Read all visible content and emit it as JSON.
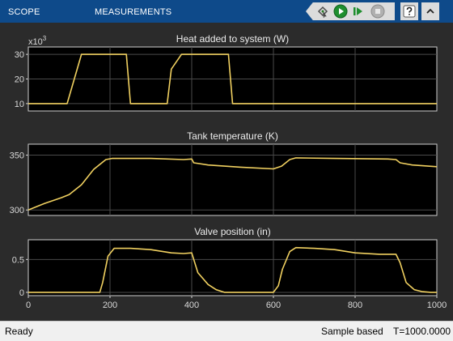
{
  "toolbar": {
    "tabs": [
      {
        "label": "SCOPE"
      },
      {
        "label": "MEASUREMENTS"
      }
    ],
    "accent_color": "#0e4a8a"
  },
  "controls": {
    "icons": [
      "highlight-simulink-block-icon",
      "run-icon",
      "step-forward-icon",
      "stop-icon",
      "help-icon",
      "collapse-toolstrip-icon"
    ]
  },
  "status": {
    "state": "Ready",
    "mode": "Sample based",
    "time": "T=1000.0000"
  },
  "chart_data": [
    {
      "type": "line",
      "title": "Heat added to system (W)",
      "exponent_label": "x10",
      "exponent": "3",
      "x": [
        0,
        95,
        130,
        240,
        250,
        340,
        350,
        375,
        490,
        500,
        1000
      ],
      "y": [
        10,
        10,
        30,
        30,
        10,
        10,
        24,
        30,
        30,
        10,
        10
      ],
      "xlim": [
        0,
        1000
      ],
      "ylim": [
        7,
        33
      ],
      "yticks": [
        10,
        20,
        30
      ],
      "line_color": "#f0d060",
      "background": "#000000",
      "grid": true
    },
    {
      "type": "line",
      "title": "Tank temperature (K)",
      "x": [
        0,
        40,
        80,
        100,
        130,
        160,
        190,
        205,
        300,
        380,
        400,
        405,
        440,
        520,
        600,
        620,
        640,
        655,
        750,
        880,
        900,
        910,
        940,
        1000
      ],
      "y": [
        300,
        306,
        311,
        314,
        323,
        337,
        346,
        347,
        347,
        346,
        346.5,
        343,
        341,
        339,
        337.5,
        340,
        346,
        347.5,
        347,
        346.5,
        346,
        343,
        341,
        339.5
      ],
      "xlim": [
        0,
        1000
      ],
      "ylim": [
        295,
        360
      ],
      "yticks": [
        300,
        350
      ],
      "line_color": "#f0d060",
      "background": "#000000",
      "grid": true
    },
    {
      "type": "line",
      "title": "Valve position (in)",
      "x": [
        0,
        175,
        182,
        195,
        210,
        250,
        300,
        350,
        380,
        400,
        415,
        440,
        460,
        480,
        600,
        612,
        622,
        640,
        655,
        700,
        750,
        800,
        860,
        900,
        910,
        925,
        945,
        965,
        985,
        1000
      ],
      "y": [
        0,
        0,
        0.15,
        0.55,
        0.67,
        0.67,
        0.65,
        0.6,
        0.59,
        0.6,
        0.3,
        0.12,
        0.04,
        0,
        0,
        0.1,
        0.35,
        0.62,
        0.68,
        0.67,
        0.65,
        0.6,
        0.58,
        0.58,
        0.45,
        0.15,
        0.04,
        0.01,
        0,
        0
      ],
      "xlim": [
        0,
        1000
      ],
      "ylim": [
        -0.05,
        0.8
      ],
      "yticks": [
        0,
        0.5
      ],
      "xticks": [
        0,
        200,
        400,
        600,
        800,
        1000
      ],
      "line_color": "#f0d060",
      "background": "#000000",
      "grid": true
    }
  ]
}
